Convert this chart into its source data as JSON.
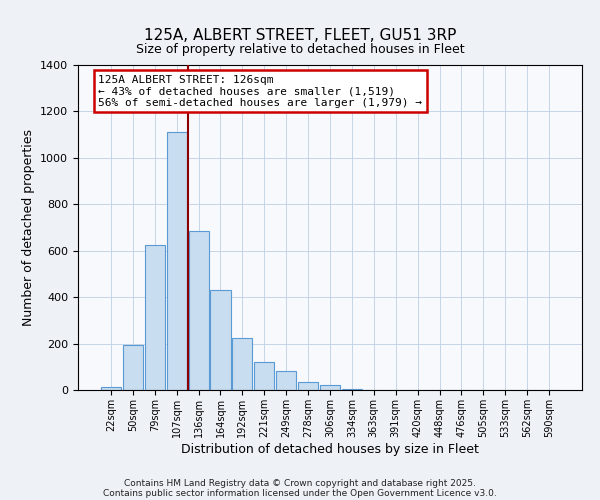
{
  "title": "125A, ALBERT STREET, FLEET, GU51 3RP",
  "subtitle": "Size of property relative to detached houses in Fleet",
  "xlabel": "Distribution of detached houses by size in Fleet",
  "ylabel": "Number of detached properties",
  "bar_labels": [
    "22sqm",
    "50sqm",
    "79sqm",
    "107sqm",
    "136sqm",
    "164sqm",
    "192sqm",
    "221sqm",
    "249sqm",
    "278sqm",
    "306sqm",
    "334sqm",
    "363sqm",
    "391sqm",
    "420sqm",
    "448sqm",
    "476sqm",
    "505sqm",
    "533sqm",
    "562sqm",
    "590sqm"
  ],
  "bar_values": [
    15,
    193,
    625,
    1113,
    687,
    430,
    222,
    122,
    80,
    33,
    20,
    5,
    2,
    1,
    0,
    0,
    0,
    0,
    0,
    0,
    0
  ],
  "bar_color": "#c8ddef",
  "bar_edgecolor": "#5b9bd5",
  "vline_x_index": 3.5,
  "vline_color": "#8b0000",
  "annotation_title": "125A ALBERT STREET: 126sqm",
  "annotation_line1": "← 43% of detached houses are smaller (1,519)",
  "annotation_line2": "56% of semi-detached houses are larger (1,979) →",
  "annotation_box_edgecolor": "#cc0000",
  "ylim": [
    0,
    1400
  ],
  "yticks": [
    0,
    200,
    400,
    600,
    800,
    1000,
    1200,
    1400
  ],
  "footnote1": "Contains HM Land Registry data © Crown copyright and database right 2025.",
  "footnote2": "Contains public sector information licensed under the Open Government Licence v3.0.",
  "bg_color": "#eef2f7",
  "plot_bg_color": "#f7f9fc",
  "grid_color": "#c5d5e8"
}
